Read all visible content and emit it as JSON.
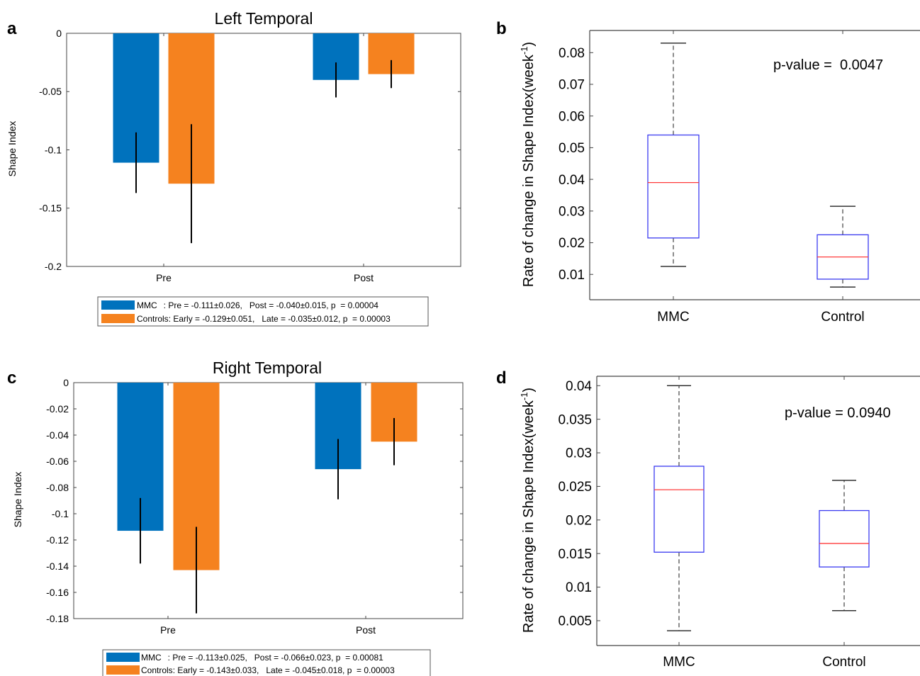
{
  "chart_data": [
    {
      "type": "bar",
      "panel": "a",
      "title": "Left Temporal",
      "ylabel": "Shape Index",
      "xlabel": "",
      "ylim": [
        -0.2,
        0
      ],
      "yticks": [
        0,
        -0.05,
        -0.1,
        -0.15,
        -0.2
      ],
      "ytick_labels": [
        "0",
        "-0.05",
        "-0.1",
        "-0.15",
        "-0.2"
      ],
      "categories": [
        "Pre",
        "Post"
      ],
      "series": [
        {
          "name": "MMC",
          "color": "#0072bd",
          "values": [
            -0.111,
            -0.04
          ],
          "errors": [
            0.026,
            0.015
          ]
        },
        {
          "name": "Controls",
          "color": "#f5821f",
          "values": [
            -0.129,
            -0.035
          ],
          "errors": [
            0.051,
            0.012
          ]
        }
      ],
      "legend": [
        {
          "label": "MMC",
          "text": ": Pre = -0.111±0.026,   Post = -0.040±0.015, p  = 0.00004"
        },
        {
          "label": "Controls",
          "text": ": Early = -0.129±0.051,   Late = -0.035±0.012, p  = 0.00003"
        }
      ],
      "legend_position": "bottom",
      "grid": false
    },
    {
      "type": "box",
      "panel": "b",
      "ylabel": "Rate of change in Shape Index(week",
      "ylabel_sup": "-1",
      "ylabel_close": ")",
      "xlabel": "",
      "ylim": [
        0.002,
        0.087
      ],
      "yticks": [
        0.01,
        0.02,
        0.03,
        0.04,
        0.05,
        0.06,
        0.07,
        0.08
      ],
      "ytick_labels": [
        "0.01",
        "0.02",
        "0.03",
        "0.04",
        "0.05",
        "0.06",
        "0.07",
        "0.08"
      ],
      "categories": [
        "MMC",
        "Control"
      ],
      "boxes": [
        {
          "name": "MMC",
          "min": 0.0125,
          "q1": 0.0215,
          "median": 0.039,
          "q3": 0.054,
          "max": 0.083
        },
        {
          "name": "Control",
          "min": 0.006,
          "q1": 0.0085,
          "median": 0.0155,
          "q3": 0.0225,
          "max": 0.0315
        }
      ],
      "annotation": "p-value =  0.0047",
      "grid": false
    },
    {
      "type": "bar",
      "panel": "c",
      "title": "Right Temporal",
      "ylabel": "Shape Index",
      "xlabel": "",
      "ylim": [
        -0.18,
        0
      ],
      "yticks": [
        0,
        -0.02,
        -0.04,
        -0.06,
        -0.08,
        -0.1,
        -0.12,
        -0.14,
        -0.16,
        -0.18
      ],
      "ytick_labels": [
        "0",
        "-0.02",
        "-0.04",
        "-0.06",
        "-0.08",
        "-0.1",
        "-0.12",
        "-0.14",
        "-0.16",
        "-0.18"
      ],
      "categories": [
        "Pre",
        "Post"
      ],
      "series": [
        {
          "name": "MMC",
          "color": "#0072bd",
          "values": [
            -0.113,
            -0.066
          ],
          "errors": [
            0.025,
            0.023
          ]
        },
        {
          "name": "Controls",
          "color": "#f5821f",
          "values": [
            -0.143,
            -0.045
          ],
          "errors": [
            0.033,
            0.018
          ]
        }
      ],
      "legend": [
        {
          "label": "MMC",
          "text": ": Pre = -0.113±0.025,   Post = -0.066±0.023, p  = 0.00081"
        },
        {
          "label": "Controls",
          "text": ": Early = -0.143±0.033,   Late = -0.045±0.018, p  = 0.00003"
        }
      ],
      "legend_position": "bottom",
      "grid": false
    },
    {
      "type": "box",
      "panel": "d",
      "ylabel": "Rate of change in Shape Index(week",
      "ylabel_sup": "-1",
      "ylabel_close": ")",
      "xlabel": "",
      "ylim": [
        0.0013,
        0.0414
      ],
      "yticks": [
        0.005,
        0.01,
        0.015,
        0.02,
        0.025,
        0.03,
        0.035,
        0.04
      ],
      "ytick_labels": [
        "0.005",
        "0.01",
        "0.015",
        "0.02",
        "0.025",
        "0.03",
        "0.035",
        "0.04"
      ],
      "categories": [
        "MMC",
        "Control"
      ],
      "boxes": [
        {
          "name": "MMC",
          "min": 0.0035,
          "q1": 0.0152,
          "median": 0.0245,
          "q3": 0.028,
          "max": 0.04
        },
        {
          "name": "Control",
          "min": 0.0065,
          "q1": 0.013,
          "median": 0.0165,
          "q3": 0.0214,
          "max": 0.0259
        }
      ],
      "annotation": "p-value = 0.0940",
      "grid": false
    }
  ]
}
